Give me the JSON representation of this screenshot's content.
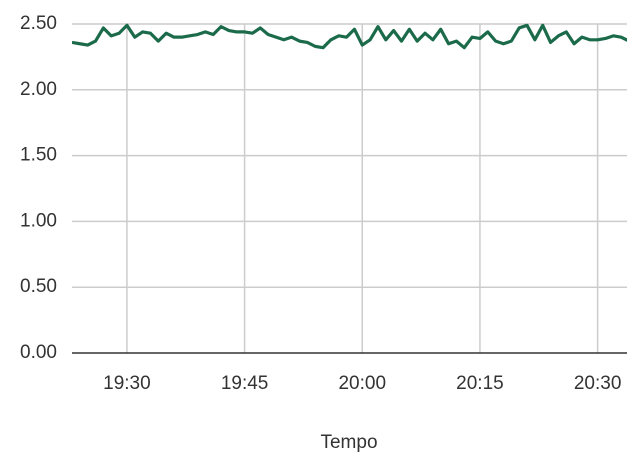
{
  "chart_data": {
    "type": "line",
    "x_label": "Tempo",
    "x": [
      "19:23",
      "19:24",
      "19:25",
      "19:26",
      "19:27",
      "19:28",
      "19:29",
      "19:30",
      "19:31",
      "19:32",
      "19:33",
      "19:34",
      "19:35",
      "19:36",
      "19:37",
      "19:38",
      "19:39",
      "19:40",
      "19:41",
      "19:42",
      "19:43",
      "19:44",
      "19:45",
      "19:46",
      "19:47",
      "19:48",
      "19:49",
      "19:50",
      "19:51",
      "19:52",
      "19:53",
      "19:54",
      "19:55",
      "19:56",
      "19:57",
      "19:58",
      "19:59",
      "20:00",
      "20:01",
      "20:02",
      "20:03",
      "20:04",
      "20:05",
      "20:06",
      "20:07",
      "20:08",
      "20:09",
      "20:10",
      "20:11",
      "20:12",
      "20:13",
      "20:14",
      "20:15",
      "20:16",
      "20:17",
      "20:18",
      "20:19",
      "20:20",
      "20:21",
      "20:22",
      "20:23",
      "20:24",
      "20:25",
      "20:26",
      "20:27",
      "20:28",
      "20:29",
      "20:30",
      "20:31",
      "20:32",
      "20:33",
      "20:34"
    ],
    "series": [
      {
        "color": "#1b6b4b",
        "values": [
          2.36,
          2.35,
          2.34,
          2.37,
          2.47,
          2.41,
          2.43,
          2.49,
          2.4,
          2.44,
          2.43,
          2.37,
          2.43,
          2.4,
          2.4,
          2.41,
          2.42,
          2.44,
          2.42,
          2.48,
          2.45,
          2.44,
          2.44,
          2.43,
          2.47,
          2.42,
          2.4,
          2.38,
          2.4,
          2.37,
          2.36,
          2.33,
          2.32,
          2.38,
          2.41,
          2.4,
          2.46,
          2.34,
          2.38,
          2.48,
          2.38,
          2.45,
          2.37,
          2.46,
          2.37,
          2.43,
          2.38,
          2.46,
          2.35,
          2.37,
          2.32,
          2.4,
          2.39,
          2.44,
          2.37,
          2.35,
          2.37,
          2.47,
          2.49,
          2.38,
          2.49,
          2.36,
          2.41,
          2.44,
          2.35,
          2.4,
          2.38,
          2.38,
          2.39,
          2.41,
          2.4,
          2.37
        ]
      }
    ],
    "xlim": [
      "19:23",
      "20:34"
    ],
    "xticks": [
      "19:30",
      "19:45",
      "20:00",
      "20:15",
      "20:30"
    ],
    "ylim": [
      0,
      2.5
    ],
    "yticks": [
      {
        "value": 0,
        "label": "0.00"
      },
      {
        "value": 0.5,
        "label": "0.50"
      },
      {
        "value": 1,
        "label": "1.00"
      },
      {
        "value": 1.5,
        "label": "1.50"
      },
      {
        "value": 2,
        "label": "2.00"
      },
      {
        "value": 2.5,
        "label": "2.50"
      }
    ],
    "grid": true
  }
}
